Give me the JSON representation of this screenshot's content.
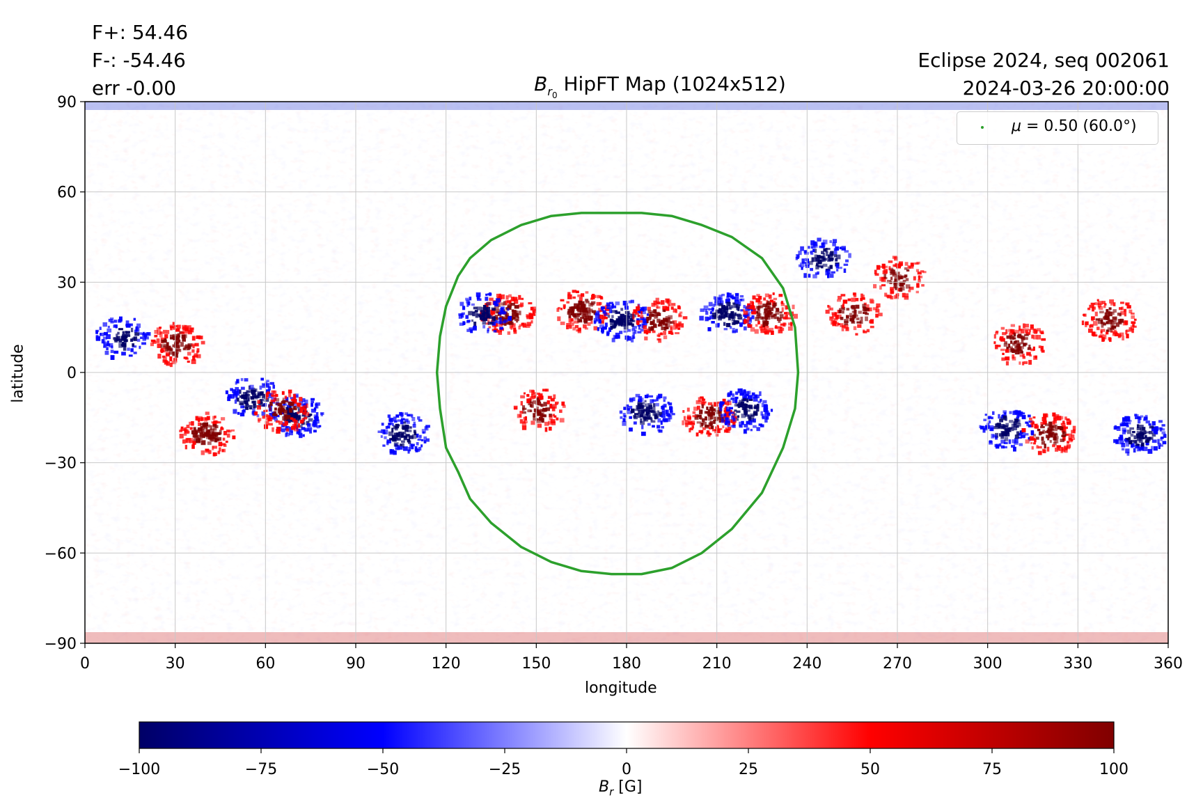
{
  "header": {
    "flux_plus": "F+: 54.46",
    "flux_minus": "F-: -54.46",
    "err": "err -0.00",
    "event": "Eclipse 2024, seq 002061",
    "datetime": "2024-03-26 20:00:00"
  },
  "colors": {
    "negative_end": "#000066",
    "negative_mid": "#0000ff",
    "zero": "#ffffff",
    "positive_mid": "#ff0000",
    "positive_end": "#800000",
    "contour": "#2ca02c",
    "grid": "#c8c8c8"
  },
  "chart_data": {
    "type": "heatmap",
    "title": {
      "main": "B",
      "sub": "r",
      "subsub": "0",
      "rest": " HipFT Map (1024x512)"
    },
    "xlabel": "longitude",
    "ylabel": "latitude",
    "xlim": [
      0,
      360
    ],
    "ylim": [
      -90,
      90
    ],
    "xticks": [
      "0",
      "30",
      "60",
      "90",
      "120",
      "150",
      "180",
      "210",
      "240",
      "270",
      "300",
      "330",
      "360"
    ],
    "yticks": [
      "90",
      "60",
      "30",
      "0",
      "−30",
      "−60",
      "−90"
    ],
    "grid": true,
    "colormap": "seismic",
    "clim": [
      -100,
      100
    ],
    "colorbar": {
      "ticks": [
        "−100",
        "−75",
        "−50",
        "−25",
        "0",
        "25",
        "50",
        "75",
        "100"
      ],
      "label_main": "B",
      "label_sub": "r",
      "label_unit": " [G]"
    },
    "legend": {
      "position": "upper right",
      "label_symbol": "μ",
      "label_rest": " = 0.50 (60.0°)"
    },
    "contour_mu_0p5": {
      "longitude": [
        120,
        124,
        128,
        135,
        145,
        155,
        165,
        175,
        180,
        185,
        195,
        205,
        215,
        225,
        232,
        236,
        237,
        236,
        232,
        225,
        215,
        205,
        195,
        185,
        180,
        175,
        165,
        155,
        145,
        135,
        128,
        124,
        120,
        118,
        117,
        118,
        120
      ],
      "latitude": [
        22,
        32,
        38,
        44,
        49,
        52,
        53,
        53,
        53,
        53,
        52,
        49,
        45,
        38,
        28,
        15,
        0,
        -12,
        -25,
        -40,
        -52,
        -60,
        -65,
        -67,
        -67,
        -67,
        -66,
        -63,
        -58,
        -50,
        -42,
        -33,
        -25,
        -12,
        0,
        12,
        22
      ]
    },
    "active_regions": [
      {
        "lon": 140,
        "lat": 20,
        "polarity": "positive",
        "peak_G": 100
      },
      {
        "lon": 132,
        "lat": 20,
        "polarity": "negative",
        "peak_G": -80
      },
      {
        "lon": 165,
        "lat": 21,
        "polarity": "positive",
        "peak_G": 90
      },
      {
        "lon": 178,
        "lat": 18,
        "polarity": "negative",
        "peak_G": -100
      },
      {
        "lon": 190,
        "lat": 18,
        "polarity": "positive",
        "peak_G": 80
      },
      {
        "lon": 213,
        "lat": 20,
        "polarity": "negative",
        "peak_G": -100
      },
      {
        "lon": 227,
        "lat": 20,
        "polarity": "positive",
        "peak_G": 100
      },
      {
        "lon": 207,
        "lat": -14,
        "polarity": "positive",
        "peak_G": 100
      },
      {
        "lon": 219,
        "lat": -12,
        "polarity": "negative",
        "peak_G": -100
      },
      {
        "lon": 186,
        "lat": -13,
        "polarity": "negative",
        "peak_G": -90
      },
      {
        "lon": 150,
        "lat": -12,
        "polarity": "positive",
        "peak_G": 80
      },
      {
        "lon": 30,
        "lat": 10,
        "polarity": "positive",
        "peak_G": 90
      },
      {
        "lon": 12,
        "lat": 12,
        "polarity": "negative",
        "peak_G": -70
      },
      {
        "lon": 40,
        "lat": -20,
        "polarity": "positive",
        "peak_G": 100
      },
      {
        "lon": 70,
        "lat": -14,
        "polarity": "negative",
        "peak_G": -100
      },
      {
        "lon": 55,
        "lat": -8,
        "polarity": "negative",
        "peak_G": -80
      },
      {
        "lon": 65,
        "lat": -12,
        "polarity": "positive",
        "peak_G": 80
      },
      {
        "lon": 105,
        "lat": -20,
        "polarity": "negative",
        "peak_G": -90
      },
      {
        "lon": 306,
        "lat": -18,
        "polarity": "negative",
        "peak_G": -90
      },
      {
        "lon": 320,
        "lat": -20,
        "polarity": "positive",
        "peak_G": 90
      },
      {
        "lon": 350,
        "lat": -20,
        "polarity": "negative",
        "peak_G": -100
      },
      {
        "lon": 340,
        "lat": 18,
        "polarity": "positive",
        "peak_G": 90
      },
      {
        "lon": 310,
        "lat": 10,
        "polarity": "positive",
        "peak_G": 80
      },
      {
        "lon": 255,
        "lat": 20,
        "polarity": "positive",
        "peak_G": 70
      },
      {
        "lon": 270,
        "lat": 32,
        "polarity": "positive",
        "peak_G": 70
      },
      {
        "lon": 245,
        "lat": 38,
        "polarity": "negative",
        "peak_G": -80
      }
    ]
  }
}
